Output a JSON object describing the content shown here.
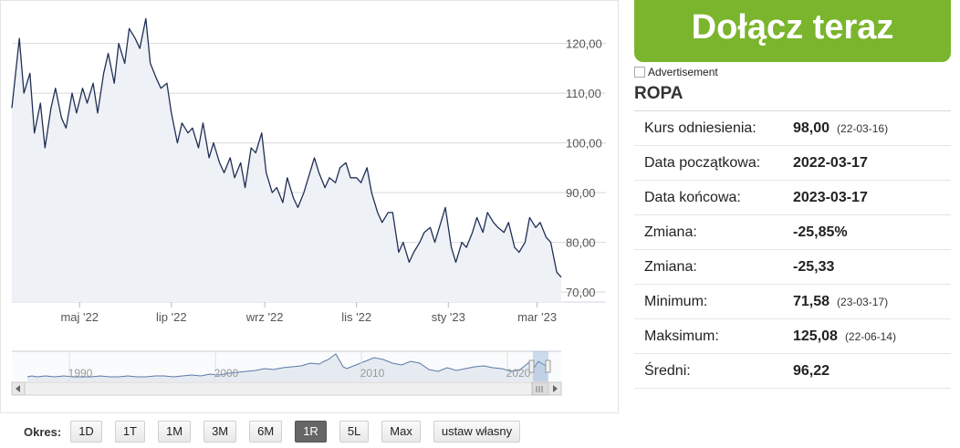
{
  "chart_data": {
    "type": "line",
    "title": "",
    "xlabel": "",
    "ylabel": "",
    "ylim": [
      68,
      128
    ],
    "y_ticks": [
      "70,00",
      "80,00",
      "90,00",
      "100,00",
      "110,00",
      "120,00"
    ],
    "y_tick_values": [
      70,
      80,
      90,
      100,
      110,
      120
    ],
    "x_tick_labels": [
      "maj '22",
      "lip '22",
      "wrz '22",
      "lis '22",
      "sty '23",
      "mar '23"
    ],
    "x_tick_dates": [
      "2022-05-01",
      "2022-07-01",
      "2022-09-01",
      "2022-11-01",
      "2023-01-01",
      "2023-03-01"
    ],
    "x_range": [
      "2022-03-17",
      "2023-03-17"
    ],
    "grid": true,
    "series": [
      {
        "color": "#1f2f55",
        "x": [
          "2022-03-17",
          "2022-03-22",
          "2022-03-25",
          "2022-03-29",
          "2022-04-01",
          "2022-04-05",
          "2022-04-08",
          "2022-04-12",
          "2022-04-15",
          "2022-04-19",
          "2022-04-22",
          "2022-04-26",
          "2022-04-29",
          "2022-05-03",
          "2022-05-06",
          "2022-05-10",
          "2022-05-13",
          "2022-05-17",
          "2022-05-20",
          "2022-05-24",
          "2022-05-27",
          "2022-05-31",
          "2022-06-03",
          "2022-06-07",
          "2022-06-10",
          "2022-06-14",
          "2022-06-17",
          "2022-06-21",
          "2022-06-24",
          "2022-06-28",
          "2022-07-01",
          "2022-07-05",
          "2022-07-08",
          "2022-07-12",
          "2022-07-15",
          "2022-07-19",
          "2022-07-22",
          "2022-07-26",
          "2022-07-29",
          "2022-08-02",
          "2022-08-05",
          "2022-08-09",
          "2022-08-12",
          "2022-08-16",
          "2022-08-19",
          "2022-08-23",
          "2022-08-26",
          "2022-08-30",
          "2022-09-02",
          "2022-09-06",
          "2022-09-09",
          "2022-09-13",
          "2022-09-16",
          "2022-09-20",
          "2022-09-23",
          "2022-09-27",
          "2022-09-30",
          "2022-10-04",
          "2022-10-07",
          "2022-10-11",
          "2022-10-14",
          "2022-10-18",
          "2022-10-21",
          "2022-10-25",
          "2022-10-28",
          "2022-11-01",
          "2022-11-04",
          "2022-11-08",
          "2022-11-11",
          "2022-11-15",
          "2022-11-18",
          "2022-11-22",
          "2022-11-25",
          "2022-11-29",
          "2022-12-02",
          "2022-12-06",
          "2022-12-09",
          "2022-12-13",
          "2022-12-16",
          "2022-12-20",
          "2022-12-23",
          "2022-12-27",
          "2022-12-30",
          "2023-01-03",
          "2023-01-06",
          "2023-01-10",
          "2023-01-13",
          "2023-01-17",
          "2023-01-20",
          "2023-01-24",
          "2023-01-27",
          "2023-01-31",
          "2023-02-03",
          "2023-02-07",
          "2023-02-10",
          "2023-02-14",
          "2023-02-17",
          "2023-02-21",
          "2023-02-24",
          "2023-02-28",
          "2023-03-03",
          "2023-03-07",
          "2023-03-10",
          "2023-03-14",
          "2023-03-17"
        ],
        "y": [
          107,
          121,
          110,
          114,
          102,
          108,
          99,
          107,
          111,
          105,
          103,
          110,
          106,
          111,
          108,
          112,
          106,
          114,
          118,
          112,
          120,
          116,
          123,
          121,
          119,
          125,
          116,
          113,
          111,
          112,
          106,
          100,
          104,
          102,
          103,
          99,
          104,
          97,
          100,
          96,
          94,
          97,
          93,
          96,
          91,
          99,
          98,
          102,
          94,
          90,
          91,
          88,
          93,
          89,
          87,
          90,
          93,
          97,
          94,
          91,
          93,
          92,
          95,
          96,
          93,
          93,
          92,
          95,
          90,
          86,
          84,
          86,
          86,
          78,
          80,
          76,
          78,
          80,
          82,
          83,
          80,
          84,
          87,
          79,
          76,
          80,
          79,
          82,
          85,
          82,
          86,
          84,
          83,
          82,
          84,
          79,
          78,
          80,
          85,
          83,
          84,
          81,
          80,
          74,
          73
        ]
      }
    ],
    "navigator": {
      "year_labels": [
        "1990",
        "2000",
        "2010",
        "2020"
      ]
    }
  },
  "period": {
    "label": "Okres:",
    "buttons": [
      "1D",
      "1T",
      "1M",
      "3M",
      "6M",
      "1R",
      "5L",
      "Max",
      "ustaw własny"
    ],
    "active": "1R"
  },
  "cta": {
    "label": "Dołącz teraz",
    "color": "#7ab52d"
  },
  "ad": {
    "alt": "Advertisement"
  },
  "instrument": {
    "name": "ROPA",
    "stats": [
      {
        "label": "Kurs odniesienia:",
        "value": "98,00",
        "date": "(22-03-16)"
      },
      {
        "label": "Data początkowa:",
        "value": "2022-03-17",
        "date": ""
      },
      {
        "label": "Data końcowa:",
        "value": "2023-03-17",
        "date": ""
      },
      {
        "label": "Zmiana:",
        "value": "-25,85%",
        "date": ""
      },
      {
        "label": "Zmiana:",
        "value": "-25,33",
        "date": ""
      },
      {
        "label": "Minimum:",
        "value": "71,58",
        "date": "(23-03-17)"
      },
      {
        "label": "Maksimum:",
        "value": "125,08",
        "date": "(22-06-14)"
      },
      {
        "label": "Średni:",
        "value": "96,22",
        "date": ""
      }
    ]
  }
}
